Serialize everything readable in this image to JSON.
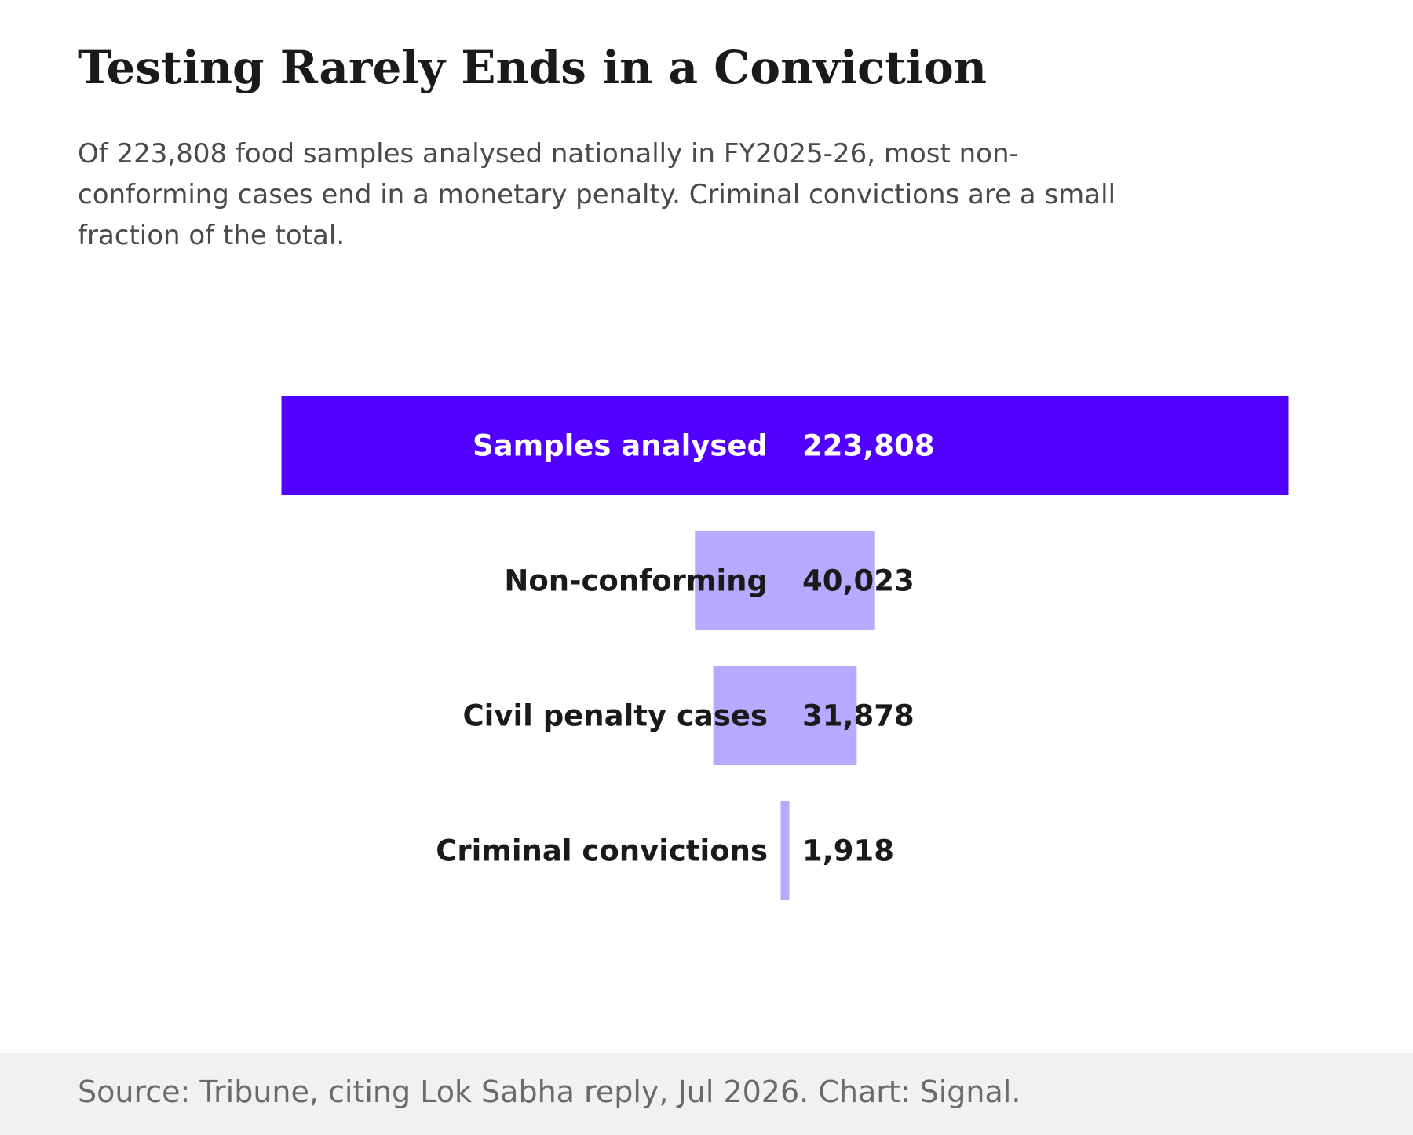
{
  "title": "Testing Rarely Ends in a Conviction",
  "subtitle": "Of 223,808 food samples analysed nationally in FY2025-26, most non-conforming cases end in a monetary penalty. Criminal convictions are a small fraction of the total.",
  "source": "Source: Tribune, citing Lok Sabha reply, Jul 2026. Chart: Signal.",
  "colors": {
    "primary": "#5200ff",
    "secondary": "#b8a8ff",
    "text_dark": "#1a1a1a",
    "text_light": "#ffffff",
    "footer_bg": "#f2f1ef"
  },
  "chart_data": {
    "type": "bar",
    "orientation": "horizontal-funnel",
    "categories": [
      "Samples analysed",
      "Non-conforming",
      "Civil penalty cases",
      "Criminal convictions"
    ],
    "values": [
      223808,
      40023,
      31878,
      1918
    ],
    "value_labels": [
      "223,808",
      "40,023",
      "31,878",
      "1,918"
    ],
    "grid": false,
    "legend": "none"
  }
}
